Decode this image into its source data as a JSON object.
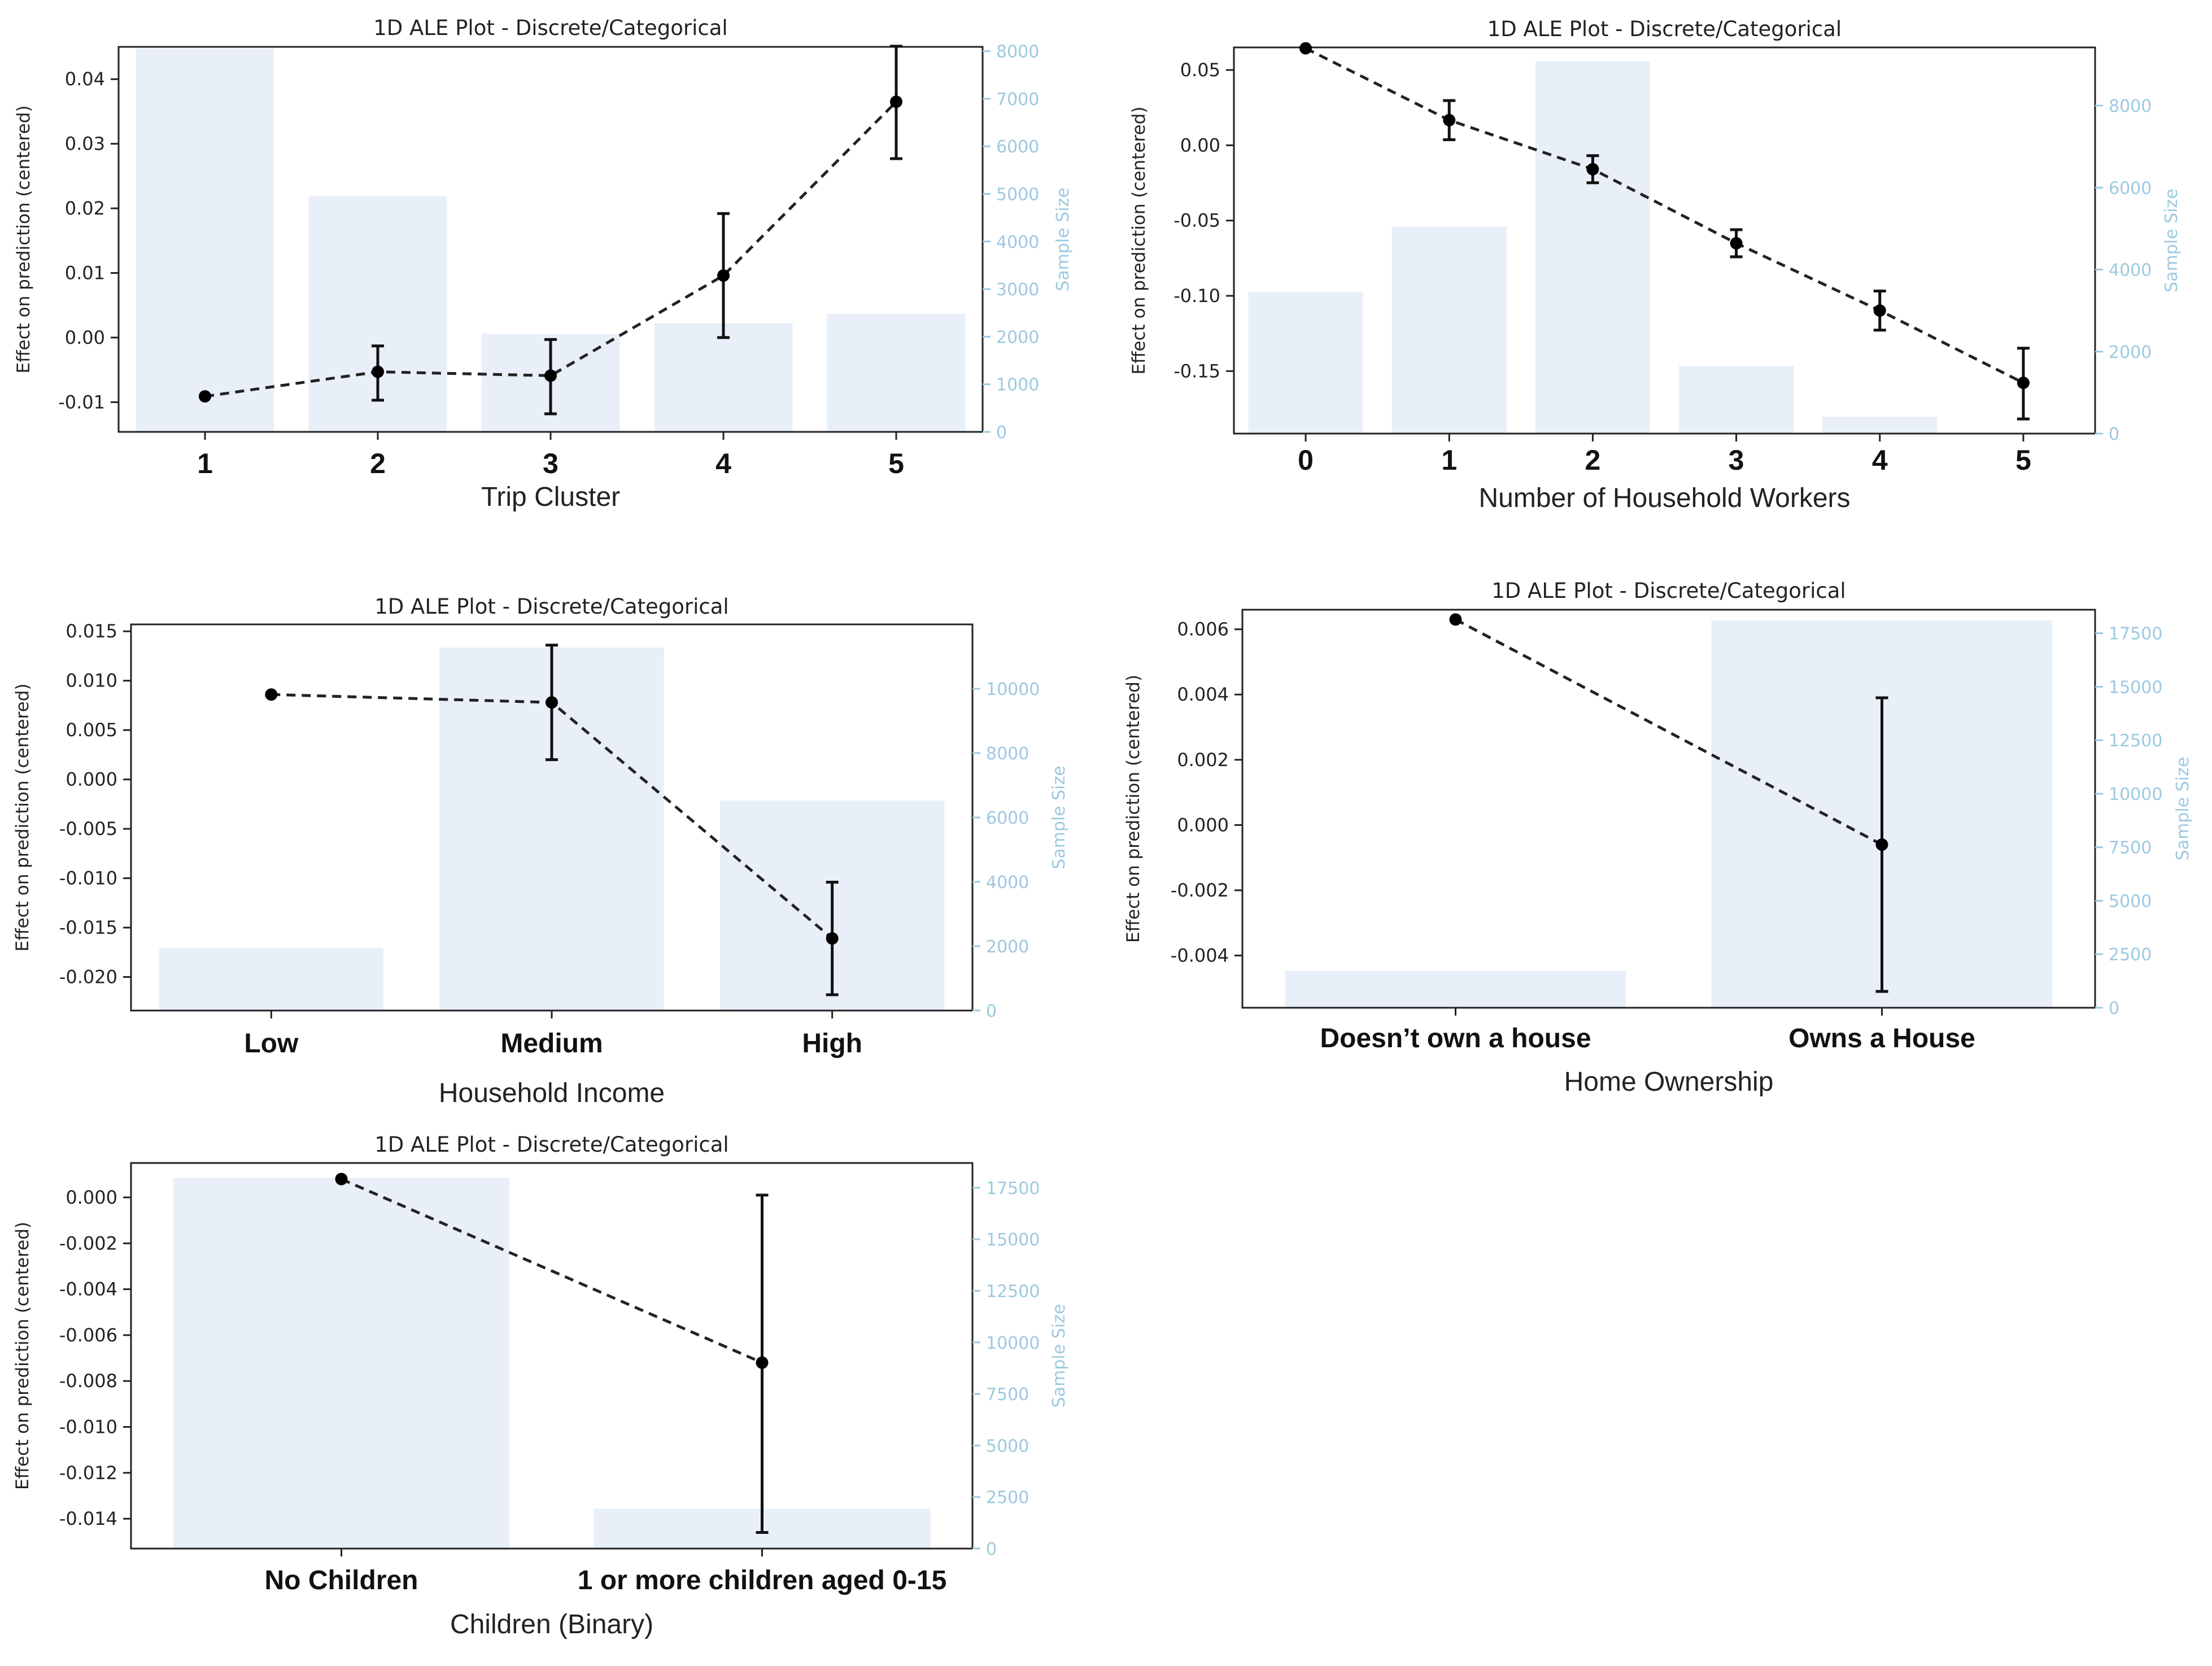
{
  "colors": {
    "bar": "#e8eff8",
    "line": "#222222",
    "point": "#000000",
    "right_axis": "#9cc9e0",
    "axis": "#222222"
  },
  "chart_data": [
    {
      "type": "bar+line",
      "title": "1D ALE Plot - Discrete/Categorical",
      "xlabel": "Trip Cluster",
      "ylabel": "Effect on prediction (centered)",
      "y2label": "Sample Size",
      "categories": [
        "1",
        "2",
        "3",
        "4",
        "5"
      ],
      "ale": [
        -0.0091,
        -0.0053,
        -0.0059,
        0.0096,
        0.0365
      ],
      "ci_low": [
        -0.0091,
        -0.0097,
        -0.0118,
        0.0,
        0.0277
      ],
      "ci_high": [
        -0.0091,
        -0.0013,
        -0.0003,
        0.0192,
        0.0451
      ],
      "sample_size": [
        8050,
        4950,
        2060,
        2280,
        2480
      ],
      "ylim": [
        -0.0146,
        0.045
      ],
      "yticks": [
        -0.01,
        0.0,
        0.01,
        0.02,
        0.03,
        0.04
      ],
      "ytick_labels": [
        "-0.01",
        "0.00",
        "0.01",
        "0.02",
        "0.03",
        "0.04"
      ],
      "y2lim": [
        0,
        8090
      ],
      "y2ticks": [
        0,
        1000,
        2000,
        3000,
        4000,
        5000,
        6000,
        7000,
        8000
      ],
      "y2tick_labels": [
        "0",
        "1000",
        "2000",
        "3000",
        "4000",
        "5000",
        "6000",
        "7000",
        "8000"
      ],
      "cat_font": 50
    },
    {
      "type": "bar+line",
      "title": "1D ALE Plot - Discrete/Categorical",
      "xlabel": "Number of Household Workers",
      "ylabel": "Effect on prediction (centered)",
      "y2label": "Sample Size",
      "categories": [
        "0",
        "1",
        "2",
        "3",
        "4",
        "5"
      ],
      "ale": [
        0.0644,
        0.0167,
        -0.0159,
        -0.0651,
        -0.1098,
        -0.1578
      ],
      "ci_low": [
        0.0644,
        0.0037,
        -0.0249,
        -0.0741,
        -0.1228,
        -0.1818
      ],
      "ci_high": [
        0.0644,
        0.0297,
        -0.0069,
        -0.0561,
        -0.0968,
        -0.1348
      ],
      "sample_size": [
        3460,
        5050,
        9080,
        1650,
        410,
        0
      ],
      "ylim": [
        -0.1915,
        0.065
      ],
      "yticks": [
        -0.15,
        -0.1,
        -0.05,
        0.0,
        0.05
      ],
      "ytick_labels": [
        "-0.15",
        "-0.10",
        "-0.05",
        "0.00",
        "0.05"
      ],
      "y2lim": [
        0,
        9420
      ],
      "y2ticks": [
        0,
        2000,
        4000,
        6000,
        8000
      ],
      "y2tick_labels": [
        "0",
        "2000",
        "4000",
        "6000",
        "8000"
      ],
      "cat_font": 50
    },
    {
      "type": "bar+line",
      "title": "1D ALE Plot - Discrete/Categorical",
      "xlabel": "Household Income",
      "ylabel": "Effect on prediction (centered)",
      "y2label": "Sample Size",
      "categories": [
        "Low",
        "Medium",
        "High"
      ],
      "ale": [
        0.0086,
        0.0078,
        -0.0161
      ],
      "ci_low": [
        0.0086,
        0.002,
        -0.0218
      ],
      "ci_high": [
        0.0086,
        0.0136,
        -0.0104
      ],
      "sample_size": [
        1950,
        11280,
        6530
      ],
      "ylim": [
        -0.0234,
        0.0157
      ],
      "yticks": [
        -0.02,
        -0.015,
        -0.01,
        -0.005,
        0.0,
        0.005,
        0.01,
        0.015
      ],
      "ytick_labels": [
        "-0.020",
        "-0.015",
        "-0.010",
        "-0.005",
        "0.000",
        "0.005",
        "0.010",
        "0.015"
      ],
      "y2lim": [
        0,
        12000
      ],
      "y2ticks": [
        0,
        2000,
        4000,
        6000,
        8000,
        10000
      ],
      "y2tick_labels": [
        "0",
        "2000",
        "4000",
        "6000",
        "8000",
        "10000"
      ],
      "cat_font": 48
    },
    {
      "type": "bar+line",
      "title": "1D ALE Plot - Discrete/Categorical",
      "xlabel": "Home Ownership",
      "ylabel": "Effect on prediction (centered)",
      "y2label": "Sample Size",
      "categories": [
        "Doesn’t own a house",
        "Owns a House"
      ],
      "ale": [
        0.0063,
        -0.0006
      ],
      "ci_low": [
        0.0063,
        -0.0051
      ],
      "ci_high": [
        0.0063,
        0.0039
      ],
      "sample_size": [
        1730,
        18100
      ],
      "ylim": [
        -0.0056,
        0.0066
      ],
      "yticks": [
        -0.004,
        -0.002,
        0.0,
        0.002,
        0.004,
        0.006
      ],
      "ytick_labels": [
        "-0.004",
        "-0.002",
        "0.000",
        "0.002",
        "0.004",
        "0.006"
      ],
      "y2lim": [
        0,
        18600
      ],
      "y2ticks": [
        0,
        2500,
        5000,
        7500,
        10000,
        12500,
        15000,
        17500
      ],
      "y2tick_labels": [
        "0",
        "2500",
        "5000",
        "7500",
        "10000",
        "12500",
        "15000",
        "17500"
      ],
      "cat_font": 48
    },
    {
      "type": "bar+line",
      "title": "1D ALE Plot - Discrete/Categorical",
      "xlabel": "Children (Binary)",
      "ylabel": "Effect on prediction (centered)",
      "y2label": "Sample Size",
      "categories": [
        "No Children",
        "1 or more children aged 0-15"
      ],
      "ale": [
        0.0008,
        -0.0072
      ],
      "ci_low": [
        0.0008,
        -0.0146
      ],
      "ci_high": [
        0.0008,
        0.0001
      ],
      "sample_size": [
        17980,
        1930
      ],
      "ylim": [
        -0.0153,
        0.0015
      ],
      "yticks": [
        -0.014,
        -0.012,
        -0.01,
        -0.008,
        -0.006,
        -0.004,
        -0.002,
        0.0
      ],
      "ytick_labels": [
        "-0.014",
        "-0.012",
        "-0.010",
        "-0.008",
        "-0.006",
        "-0.004",
        "-0.002",
        "0.000"
      ],
      "y2lim": [
        0,
        18700
      ],
      "y2ticks": [
        0,
        2500,
        5000,
        7500,
        10000,
        12500,
        15000,
        17500
      ],
      "y2tick_labels": [
        "0",
        "2500",
        "5000",
        "7500",
        "10000",
        "12500",
        "15000",
        "17500"
      ],
      "cat_font": 48
    }
  ]
}
